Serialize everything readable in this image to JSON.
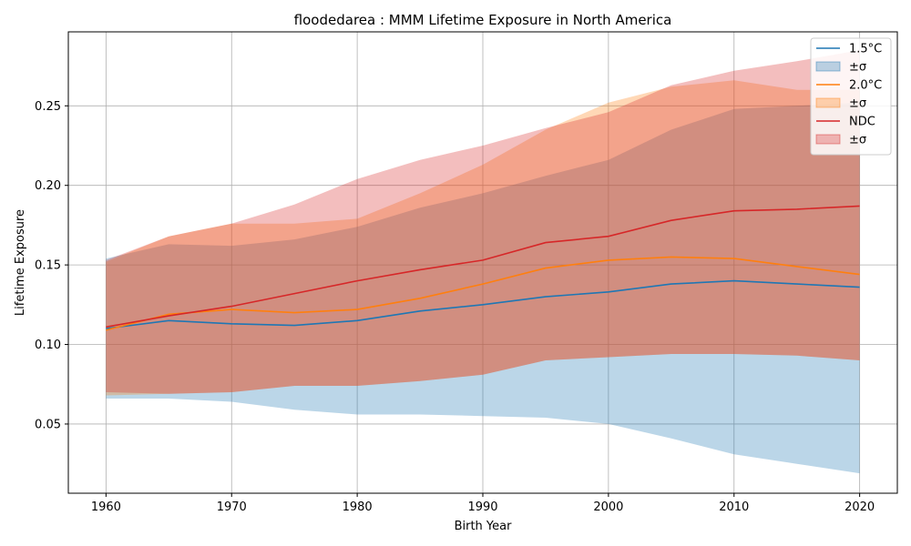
{
  "chart_data": {
    "type": "line",
    "title": "floodedarea : MMM Lifetime Exposure in North America",
    "xlabel": "Birth Year",
    "ylabel": "Lifetime Exposure",
    "xlim": [
      1957,
      2023
    ],
    "ylim": [
      0.0065,
      0.2965
    ],
    "xticks": [
      1960,
      1970,
      1980,
      1990,
      2000,
      2010,
      2020
    ],
    "xtick_labels": [
      "1960",
      "1970",
      "1980",
      "1990",
      "2000",
      "2010",
      "2020"
    ],
    "yticks": [
      0.05,
      0.1,
      0.15,
      0.2,
      0.25
    ],
    "ytick_labels": [
      "0.05",
      "0.10",
      "0.15",
      "0.20",
      "0.25"
    ],
    "grid": true,
    "legend_position": "top-right",
    "legend_entries": [
      {
        "label": "1.5°C",
        "kind": "line",
        "series": 0
      },
      {
        "label": "±σ",
        "kind": "band",
        "series": 0
      },
      {
        "label": "2.0°C",
        "kind": "line",
        "series": 1
      },
      {
        "label": "±σ",
        "kind": "band",
        "series": 1
      },
      {
        "label": "NDC",
        "kind": "line",
        "series": 2
      },
      {
        "label": "±σ",
        "kind": "band",
        "series": 2
      }
    ],
    "x": [
      1960,
      1965,
      1970,
      1975,
      1980,
      1985,
      1990,
      1995,
      2000,
      2005,
      2010,
      2015,
      2020
    ],
    "series": [
      {
        "name": "1.5°C",
        "color": "#1f77b4",
        "values": [
          0.11,
          0.115,
          0.113,
          0.112,
          0.115,
          0.121,
          0.125,
          0.13,
          0.133,
          0.138,
          0.14,
          0.138,
          0.136
        ],
        "lower": [
          0.066,
          0.066,
          0.064,
          0.059,
          0.056,
          0.056,
          0.055,
          0.054,
          0.05,
          0.041,
          0.031,
          0.025,
          0.019
        ],
        "upper": [
          0.154,
          0.163,
          0.162,
          0.166,
          0.174,
          0.186,
          0.195,
          0.206,
          0.216,
          0.235,
          0.248,
          0.25,
          0.252
        ]
      },
      {
        "name": "2.0°C",
        "color": "#ff7f0e",
        "values": [
          0.109,
          0.119,
          0.122,
          0.12,
          0.122,
          0.129,
          0.138,
          0.148,
          0.153,
          0.155,
          0.154,
          0.149,
          0.144
        ],
        "lower": [
          0.068,
          0.069,
          0.07,
          0.074,
          0.074,
          0.077,
          0.081,
          0.09,
          0.092,
          0.094,
          0.094,
          0.093,
          0.09
        ],
        "upper": [
          0.152,
          0.168,
          0.176,
          0.176,
          0.179,
          0.195,
          0.213,
          0.235,
          0.252,
          0.262,
          0.266,
          0.26,
          0.26
        ]
      },
      {
        "name": "NDC",
        "color": "#d62728",
        "values": [
          0.111,
          0.118,
          0.124,
          0.132,
          0.14,
          0.147,
          0.153,
          0.164,
          0.168,
          0.178,
          0.184,
          0.185,
          0.187
        ],
        "lower": [
          0.07,
          0.069,
          0.07,
          0.074,
          0.074,
          0.077,
          0.081,
          0.09,
          0.092,
          0.094,
          0.094,
          0.093,
          0.09
        ],
        "upper": [
          0.153,
          0.168,
          0.176,
          0.188,
          0.204,
          0.216,
          0.225,
          0.236,
          0.246,
          0.263,
          0.272,
          0.278,
          0.285
        ]
      }
    ]
  }
}
